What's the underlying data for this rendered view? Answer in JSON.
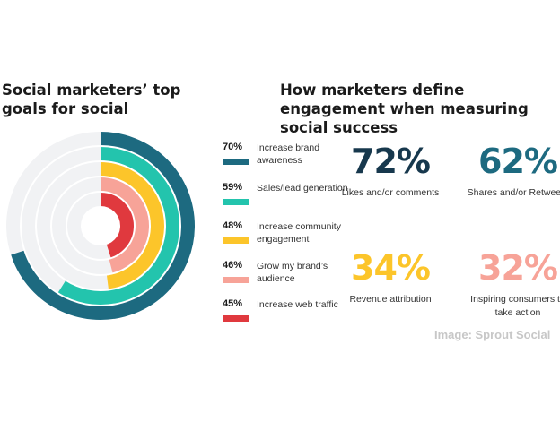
{
  "left_title": "Social marketers’ top goals for social",
  "right_title": "How marketers define engagement when measuring social success",
  "chart_data": {
    "type": "radial-bar",
    "max": 100,
    "track_color": "#f1f2f4",
    "series": [
      {
        "label": "Increase brand awareness",
        "value": 70,
        "display": "70%",
        "color": "#1d6a80"
      },
      {
        "label": "Sales/lead generation",
        "value": 59,
        "display": "59%",
        "color": "#23c4ad"
      },
      {
        "label": "Increase community engagement",
        "value": 48,
        "display": "48%",
        "color": "#fcc52a"
      },
      {
        "label": "Grow my brand’s audience",
        "value": 46,
        "display": "46%",
        "color": "#f7a398"
      },
      {
        "label": "Increase web traffic",
        "value": 45,
        "display": "45%",
        "color": "#e0393e"
      }
    ]
  },
  "stats": [
    {
      "value": "72%",
      "label": "Likes and/or comments",
      "color": "#17384d"
    },
    {
      "value": "62%",
      "label": "Shares and/or Retweets",
      "color": "#1d6a80"
    },
    {
      "value": "34%",
      "label": "Revenue attribution",
      "color": "#fcc52a"
    },
    {
      "value": "32%",
      "label": "Inspiring consumers to take action",
      "color": "#f7a398"
    }
  ],
  "credit": "Image: Sprout Social"
}
